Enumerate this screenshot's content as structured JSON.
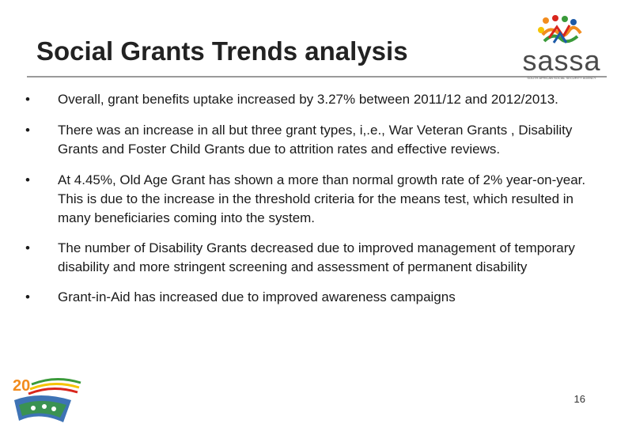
{
  "slide": {
    "title": "Social Grants Trends analysis",
    "logo_text": "sassa",
    "logo_subtext": "SOUTH AFRICAN SOCIAL SECURITY AGENCY",
    "bullet_glyph": "•",
    "bullets": [
      "Overall, grant benefits uptake increased by 3.27% between 2011/12 and 2012/2013.",
      "There was  an increase in all but three grant types, i,.e., War Veteran Grants , Disability Grants and Foster Child Grants due to attrition rates and effective reviews.",
      "At 4.45%, Old Age Grant has shown a more than normal growth rate of 2% year-on-year. This is due to the increase in the threshold criteria for the means test, which resulted in many beneficiaries coming into the system.",
      "The number of Disability Grants decreased due to improved management of temporary disability and more stringent screening and assessment of permanent disability",
      "Grant-in-Aid has increased due to improved awareness campaigns"
    ],
    "footer_logo_text": "20 YEARS OF FREEDOM",
    "page_number": "16"
  },
  "colors": {
    "title": "#222222",
    "rule": "#9a9a9a",
    "logo_orange": "#f28c1e",
    "logo_red": "#d9261c",
    "logo_green": "#3a9a3a",
    "logo_blue": "#1c5aa8",
    "logo_yellow": "#f5c400"
  }
}
